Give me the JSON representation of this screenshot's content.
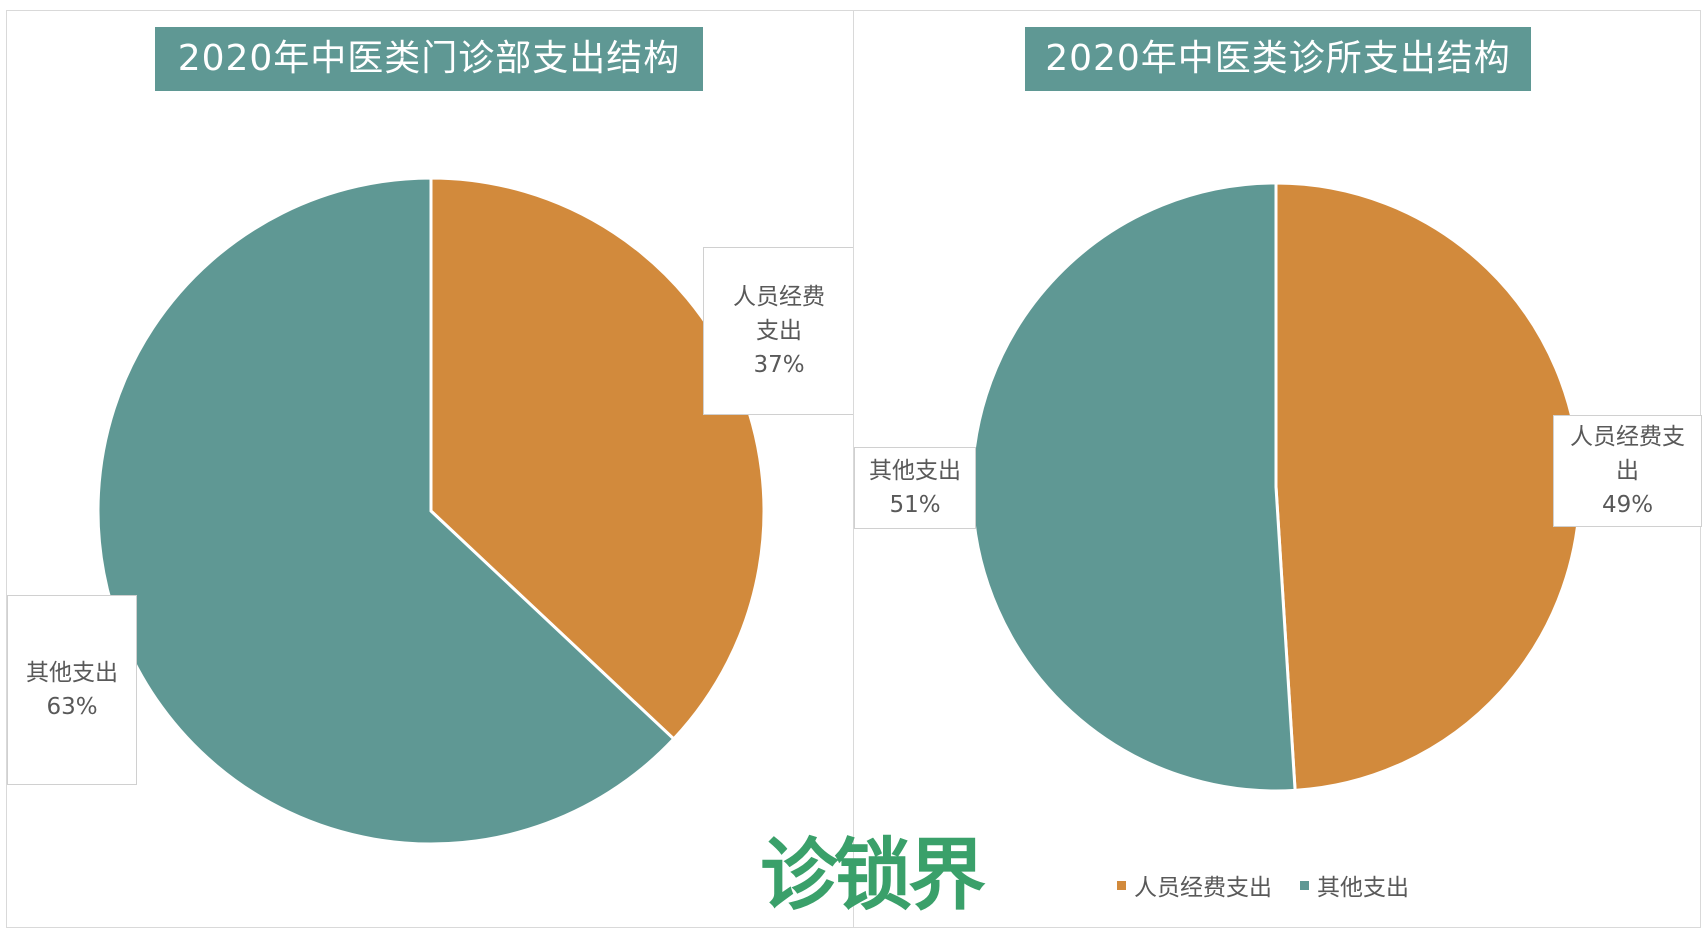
{
  "colors": {
    "staff": "#D28A3C",
    "other": "#5F9894",
    "title_bg": "#5F9894"
  },
  "watermark": "诊锁界",
  "chart_data": [
    {
      "type": "pie",
      "title": "2020年中医类门诊部支出结构",
      "slices": [
        {
          "name": "人员经费支出",
          "label_lines": [
            "人员经费",
            "支出"
          ],
          "value": 37,
          "percent_label": "37%"
        },
        {
          "name": "其他支出",
          "label_lines": [
            "其他支出"
          ],
          "value": 63,
          "percent_label": "63%"
        }
      ],
      "start_angle_deg": 0,
      "direction": "clockwise"
    },
    {
      "type": "pie",
      "title": "2020年中医类诊所支出结构",
      "slices": [
        {
          "name": "人员经费支出",
          "label_lines": [
            "人员经费支",
            "出"
          ],
          "value": 49,
          "percent_label": "49%"
        },
        {
          "name": "其他支出",
          "label_lines": [
            "其他支出"
          ],
          "value": 51,
          "percent_label": "51%"
        }
      ],
      "start_angle_deg": 0,
      "direction": "clockwise",
      "legend": {
        "position": "bottom",
        "items": [
          "人员经费支出",
          "其他支出"
        ]
      }
    }
  ]
}
